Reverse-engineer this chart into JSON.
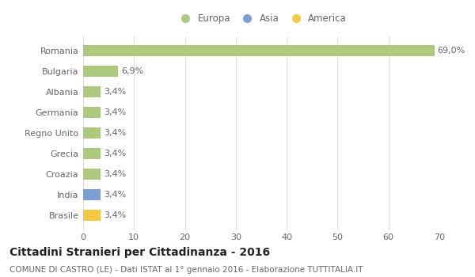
{
  "categories": [
    "Romania",
    "Bulgaria",
    "Albania",
    "Germania",
    "Regno Unito",
    "Grecia",
    "Croazia",
    "India",
    "Brasile"
  ],
  "values": [
    69.0,
    6.9,
    3.4,
    3.4,
    3.4,
    3.4,
    3.4,
    3.4,
    3.4
  ],
  "labels": [
    "69,0%",
    "6,9%",
    "3,4%",
    "3,4%",
    "3,4%",
    "3,4%",
    "3,4%",
    "3,4%",
    "3,4%"
  ],
  "bar_colors": [
    "#adc97e",
    "#adc97e",
    "#adc97e",
    "#adc97e",
    "#adc97e",
    "#adc97e",
    "#adc97e",
    "#7b9fd4",
    "#f5c842"
  ],
  "color_europa": "#adc97e",
  "color_asia": "#7b9fd4",
  "color_america": "#f5c842",
  "legend_labels": [
    "Europa",
    "Asia",
    "America"
  ],
  "xlim": [
    0,
    70
  ],
  "xticks": [
    0,
    10,
    20,
    30,
    40,
    50,
    60,
    70
  ],
  "title": "Cittadini Stranieri per Cittadinanza - 2016",
  "subtitle": "COMUNE DI CASTRO (LE) - Dati ISTAT al 1° gennaio 2016 - Elaborazione TUTTITALIA.IT",
  "background_color": "#ffffff",
  "grid_color": "#e0e0e0",
  "bar_height": 0.55,
  "label_fontsize": 8,
  "title_fontsize": 10,
  "subtitle_fontsize": 7.5,
  "tick_fontsize": 8,
  "legend_fontsize": 8.5
}
